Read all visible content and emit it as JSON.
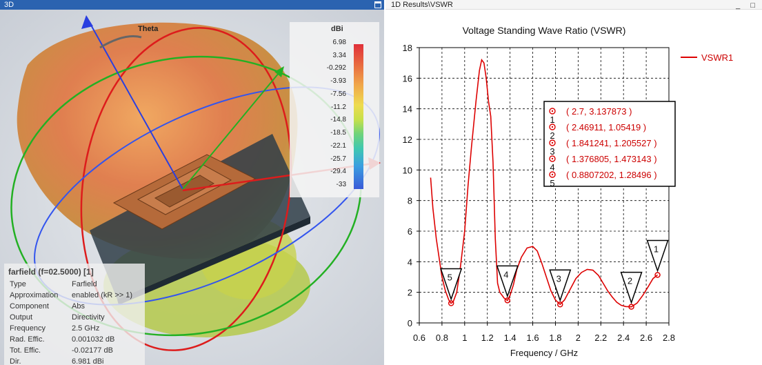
{
  "left_panel": {
    "title": "3D",
    "theta_label": "Theta",
    "colorbar": {
      "unit": "dBi",
      "labels": [
        "6.98",
        "3.34",
        "-0.292",
        "-3.93",
        "-7.56",
        "-11.2",
        "-14.8",
        "-18.5",
        "-22.1",
        "-25.7",
        "-29.4",
        "-33"
      ]
    },
    "info": {
      "title": "farfield (f=02.5000) [1]",
      "rows": [
        {
          "key": "Type",
          "value": "Farfield"
        },
        {
          "key": "Approximation",
          "value": "enabled (kR >> 1)"
        },
        {
          "key": "Component",
          "value": "Abs"
        },
        {
          "key": "Output",
          "value": "Directivity"
        },
        {
          "key": "Frequency",
          "value": "2.5 GHz"
        },
        {
          "key": "Rad. Effic.",
          "value": "0.001032 dB"
        },
        {
          "key": "Tot. Effic.",
          "value": "-0.02177 dB"
        },
        {
          "key": "Dir.",
          "value": "6.981 dBi"
        }
      ]
    }
  },
  "right_panel": {
    "title": "1D Results\\VSWR",
    "window_buttons": "_ □"
  },
  "chart_data": {
    "type": "line",
    "title": "Voltage Standing Wave Ratio (VSWR)",
    "xlabel": "Frequency / GHz",
    "ylabel": "",
    "xlim": [
      0.6,
      2.8
    ],
    "ylim": [
      0,
      18
    ],
    "xticks": [
      "0.6",
      "0.8",
      "1",
      "1.2",
      "1.4",
      "1.6",
      "1.8",
      "2",
      "2.2",
      "2.4",
      "2.6",
      "2.8"
    ],
    "yticks": [
      "0",
      "2",
      "4",
      "6",
      "8",
      "10",
      "12",
      "14",
      "16",
      "18"
    ],
    "grid": true,
    "legend": "top-right",
    "series": [
      {
        "name": "VSWR1",
        "color": "#dd0000",
        "x": [
          0.7,
          0.72,
          0.75,
          0.78,
          0.8,
          0.83,
          0.86,
          0.88,
          0.9,
          0.93,
          0.96,
          1.0,
          1.03,
          1.06,
          1.1,
          1.13,
          1.15,
          1.17,
          1.19,
          1.21,
          1.23,
          1.25,
          1.27,
          1.29,
          1.31,
          1.33,
          1.35,
          1.377,
          1.4,
          1.43,
          1.46,
          1.5,
          1.55,
          1.6,
          1.64,
          1.68,
          1.72,
          1.76,
          1.8,
          1.841,
          1.88,
          1.93,
          1.98,
          2.03,
          2.08,
          2.13,
          2.18,
          2.22,
          2.26,
          2.3,
          2.34,
          2.38,
          2.42,
          2.469,
          2.52,
          2.57,
          2.62,
          2.66,
          2.7
        ],
        "y": [
          9.5,
          7.5,
          5.5,
          4.0,
          3.0,
          2.1,
          1.5,
          1.28,
          1.4,
          2.0,
          3.5,
          6.0,
          9.0,
          11.5,
          14.5,
          16.5,
          17.2,
          17.0,
          16.0,
          14.5,
          13.5,
          10.5,
          5.5,
          2.6,
          2.0,
          1.8,
          1.6,
          1.47,
          1.8,
          2.5,
          3.5,
          4.3,
          4.9,
          5.0,
          4.7,
          3.9,
          3.0,
          2.1,
          1.5,
          1.21,
          1.5,
          2.2,
          2.9,
          3.3,
          3.5,
          3.45,
          3.1,
          2.6,
          2.1,
          1.7,
          1.35,
          1.15,
          1.07,
          1.05,
          1.3,
          1.8,
          2.4,
          2.9,
          3.14
        ]
      }
    ],
    "markers": [
      {
        "id": "1",
        "x": 2.7,
        "y": 3.137873,
        "label": "( 2.7, 3.137873 )"
      },
      {
        "id": "2",
        "x": 2.46911,
        "y": 1.05419,
        "label": "( 2.46911, 1.05419 )"
      },
      {
        "id": "3",
        "x": 1.841241,
        "y": 1.205527,
        "label": "( 1.841241, 1.205527 )"
      },
      {
        "id": "4",
        "x": 1.376805,
        "y": 1.473143,
        "label": "( 1.376805, 1.473143 )"
      },
      {
        "id": "5",
        "x": 0.8807202,
        "y": 1.28496,
        "label": "( 0.8807202, 1.28496 )"
      }
    ]
  }
}
